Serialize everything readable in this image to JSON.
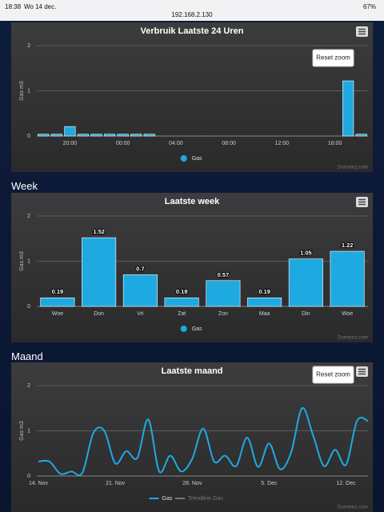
{
  "status_bar": {
    "time": "18:38",
    "date": "Wo 14 dec.",
    "url": "192.168.2.130",
    "battery": "67%"
  },
  "sections": [
    "Week",
    "Maand"
  ],
  "chart_data": [
    {
      "type": "bar",
      "title": "Verbruik Laatste 24 Uren",
      "y_label": "Gas m3",
      "categories": [
        null,
        null,
        "20:00",
        null,
        null,
        null,
        "00:00",
        null,
        null,
        null,
        "04:00",
        null,
        null,
        null,
        "08:00",
        null,
        null,
        null,
        "12:00",
        null,
        null,
        null,
        "16:00",
        null,
        null
      ],
      "series": [
        {
          "name": "Gas",
          "color": "#1fa9e1",
          "values": [
            0.04,
            0.04,
            0.21,
            0.04,
            0.04,
            0.04,
            0.04,
            0.04,
            0.04,
            null,
            null,
            null,
            null,
            null,
            null,
            null,
            null,
            null,
            null,
            null,
            null,
            null,
            null,
            1.22,
            0.04
          ]
        }
      ],
      "ylim": [
        0,
        2
      ],
      "yticks": [
        0,
        1,
        2
      ],
      "grid": true,
      "reset_zoom": "Reset zoom",
      "credit": "Domoticz.com"
    },
    {
      "type": "bar",
      "title": "Laatste week",
      "y_label": "Gas m3",
      "categories": [
        "Woe",
        "Don",
        "Vri",
        "Zat",
        "Zon",
        "Maa",
        "Din",
        "Woe"
      ],
      "series": [
        {
          "name": "Gas",
          "color": "#1fa9e1",
          "values": [
            0.19,
            1.52,
            0.7,
            0.19,
            0.57,
            0.19,
            1.05,
            1.22
          ]
        }
      ],
      "data_labels": true,
      "ylim": [
        0,
        2
      ],
      "yticks": [
        0,
        1,
        2
      ],
      "grid": true,
      "credit": "Domoticz.com"
    },
    {
      "type": "line",
      "title": "Laatste maand",
      "y_label": "Gas m3",
      "categories": [
        "14. Nov",
        null,
        null,
        null,
        null,
        null,
        null,
        "21. Nov",
        null,
        null,
        null,
        null,
        null,
        null,
        "28. Nov",
        null,
        null,
        null,
        null,
        null,
        null,
        "5. Dec",
        null,
        null,
        null,
        null,
        null,
        null,
        "12. Dec",
        null,
        null
      ],
      "series": [
        {
          "name": "Gas",
          "color": "#1fa9e1",
          "values": [
            0.32,
            0.32,
            0.05,
            0.1,
            0.07,
            0.95,
            1.0,
            0.28,
            0.55,
            0.4,
            1.25,
            0.1,
            0.45,
            0.1,
            0.38,
            1.05,
            0.32,
            0.45,
            0.22,
            0.85,
            0.2,
            0.72,
            0.15,
            0.52,
            1.5,
            0.9,
            0.22,
            0.58,
            0.25,
            1.22,
            1.22
          ]
        }
      ],
      "hidden_series": [
        {
          "name": "Trendline Gas",
          "color": "#777777"
        }
      ],
      "ylim": [
        0,
        2
      ],
      "yticks": [
        0,
        1,
        2
      ],
      "grid": true,
      "reset_zoom": "Reset zoom",
      "credit": "Domoticz.com"
    }
  ]
}
